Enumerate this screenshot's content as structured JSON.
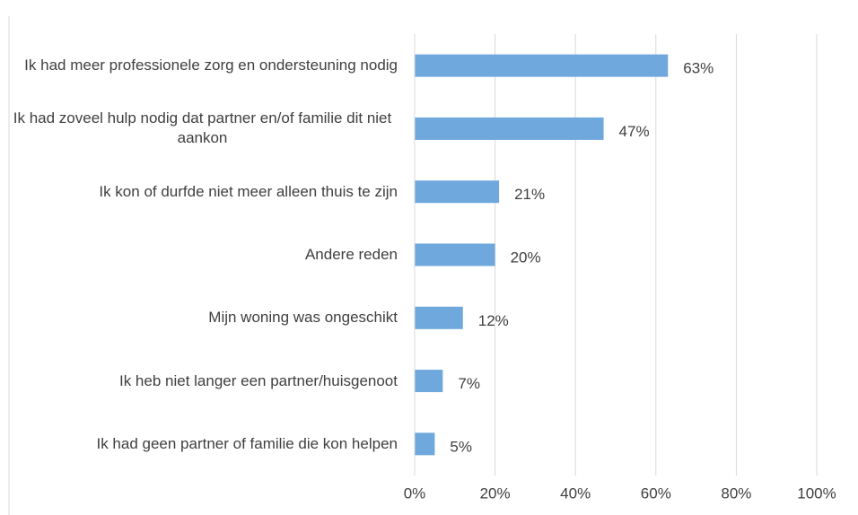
{
  "chart_data": {
    "type": "barh",
    "categories": [
      "Ik had meer professionele zorg en ondersteuning nodig",
      "Ik had zoveel hulp nodig dat partner en/of familie dit niet aankon",
      "Ik kon of durfde niet meer alleen thuis te zijn",
      "Andere reden",
      "Mijn woning was ongeschikt",
      "Ik heb niet langer een partner/huisgenoot",
      "Ik had geen partner of familie die kon helpen"
    ],
    "values": [
      63,
      47,
      21,
      20,
      12,
      7,
      5
    ],
    "value_labels": [
      "63%",
      "47%",
      "21%",
      "20%",
      "12%",
      "7%",
      "5%"
    ],
    "color": "#6fa8dc",
    "xlim": [
      0,
      100
    ],
    "xticks": [
      {
        "value": 0,
        "label": "0%"
      },
      {
        "value": 20,
        "label": "20%"
      },
      {
        "value": 40,
        "label": "40%"
      },
      {
        "value": 60,
        "label": "60%"
      },
      {
        "value": 80,
        "label": "80%"
      },
      {
        "value": 100,
        "label": "100%"
      }
    ],
    "grid": true
  }
}
